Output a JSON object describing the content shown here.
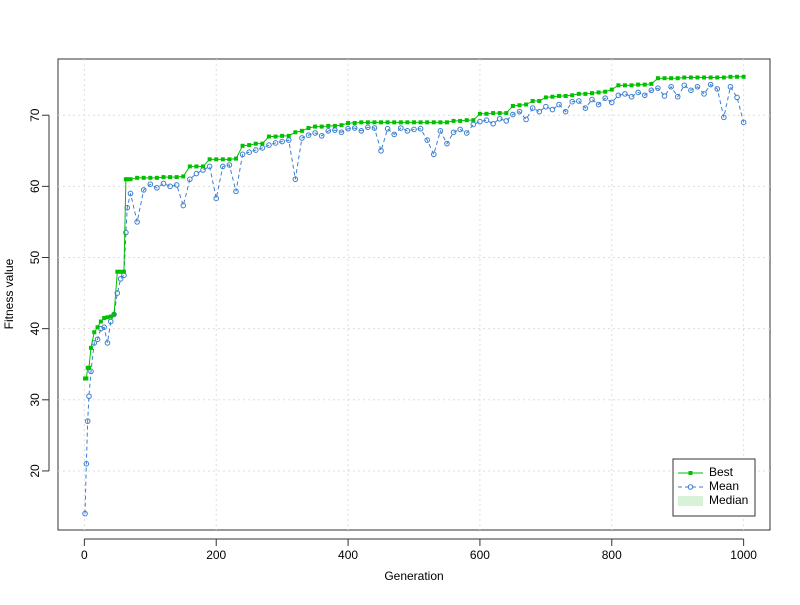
{
  "chart_data": {
    "type": "line",
    "x_label": "Generation",
    "y_label": "Fitness value",
    "xlim": [
      -40,
      1040
    ],
    "ylim": [
      11.7,
      77.9
    ],
    "xticks": [
      0,
      200,
      400,
      600,
      800,
      1000
    ],
    "yticks": [
      20,
      30,
      40,
      50,
      60,
      70
    ],
    "grid": true,
    "legend_position": "bottomright",
    "x": [
      1,
      3,
      5,
      7,
      10,
      15,
      20,
      25,
      30,
      35,
      40,
      45,
      50,
      55,
      60,
      63,
      65,
      70,
      80,
      90,
      100,
      110,
      120,
      130,
      140,
      150,
      160,
      170,
      180,
      190,
      200,
      210,
      220,
      230,
      240,
      250,
      260,
      270,
      280,
      290,
      300,
      310,
      320,
      330,
      340,
      350,
      360,
      370,
      380,
      390,
      400,
      410,
      420,
      430,
      440,
      450,
      460,
      470,
      480,
      490,
      500,
      510,
      520,
      530,
      540,
      550,
      560,
      570,
      580,
      590,
      600,
      610,
      620,
      630,
      640,
      650,
      660,
      670,
      680,
      690,
      700,
      710,
      720,
      730,
      740,
      750,
      760,
      770,
      780,
      790,
      800,
      810,
      820,
      830,
      840,
      850,
      860,
      870,
      880,
      890,
      900,
      910,
      920,
      930,
      940,
      950,
      960,
      970,
      980,
      990,
      1000
    ],
    "series": [
      {
        "name": "Best",
        "color": "#00c000",
        "values": [
          33,
          33,
          34.5,
          34.5,
          37.3,
          39.5,
          40.2,
          41,
          41.5,
          41.6,
          41.7,
          42,
          48,
          48,
          48,
          61,
          61,
          61,
          61.2,
          61.2,
          61.2,
          61.2,
          61.3,
          61.3,
          61.3,
          61.4,
          62.8,
          62.8,
          62.8,
          63.8,
          63.8,
          63.8,
          63.8,
          63.9,
          65.7,
          65.8,
          66,
          66,
          67,
          67,
          67.1,
          67.1,
          67.6,
          67.8,
          68.2,
          68.4,
          68.4,
          68.5,
          68.5,
          68.6,
          68.9,
          68.9,
          69,
          69,
          69,
          69,
          69,
          69,
          69,
          69,
          69,
          69,
          69,
          69,
          69,
          69,
          69.2,
          69.2,
          69.3,
          69.3,
          70.2,
          70.2,
          70.3,
          70.3,
          70.3,
          71.3,
          71.4,
          71.5,
          72,
          72,
          72.5,
          72.6,
          72.7,
          72.7,
          72.8,
          73,
          73,
          73.1,
          73.2,
          73.3,
          73.6,
          74.2,
          74.2,
          74.2,
          74.3,
          74.3,
          74.4,
          75.2,
          75.2,
          75.2,
          75.2,
          75.3,
          75.3,
          75.3,
          75.3,
          75.3,
          75.3,
          75.3,
          75.4,
          75.4,
          75.4
        ]
      },
      {
        "name": "Mean",
        "color": "#3a7fd0",
        "values": [
          14,
          21,
          27,
          30.5,
          34,
          38,
          38.5,
          40,
          40.2,
          38,
          41,
          42,
          45,
          47,
          47.5,
          53.5,
          57,
          59,
          55,
          59.5,
          60.3,
          59.8,
          60.4,
          60,
          60.2,
          57.3,
          61,
          61.8,
          62.3,
          62.8,
          58.3,
          62.8,
          63,
          59.3,
          64.5,
          64.8,
          65.1,
          65.4,
          65.8,
          66.1,
          66.3,
          66.5,
          61,
          66.8,
          67.2,
          67.5,
          67.1,
          67.8,
          67.9,
          67.6,
          68.1,
          68.2,
          67.8,
          68.3,
          68.2,
          65,
          68.1,
          67.3,
          68.2,
          67.8,
          68,
          68.1,
          66.5,
          64.5,
          67.8,
          66,
          67.6,
          68,
          67.5,
          68.7,
          69.1,
          69.3,
          68.8,
          69.5,
          69.2,
          70.1,
          70.5,
          69.4,
          71,
          70.5,
          71.2,
          70.8,
          71.5,
          70.5,
          71.9,
          72,
          71,
          72.2,
          71.5,
          72.4,
          71.8,
          72.8,
          73,
          72.6,
          73.2,
          72.8,
          73.5,
          73.8,
          72.7,
          74,
          72.6,
          74.2,
          73.5,
          74,
          73,
          74.3,
          73.7,
          69.7,
          74,
          72.5,
          69
        ]
      }
    ],
    "median_band": {
      "name": "Median",
      "color": "#d8f2d8"
    }
  }
}
